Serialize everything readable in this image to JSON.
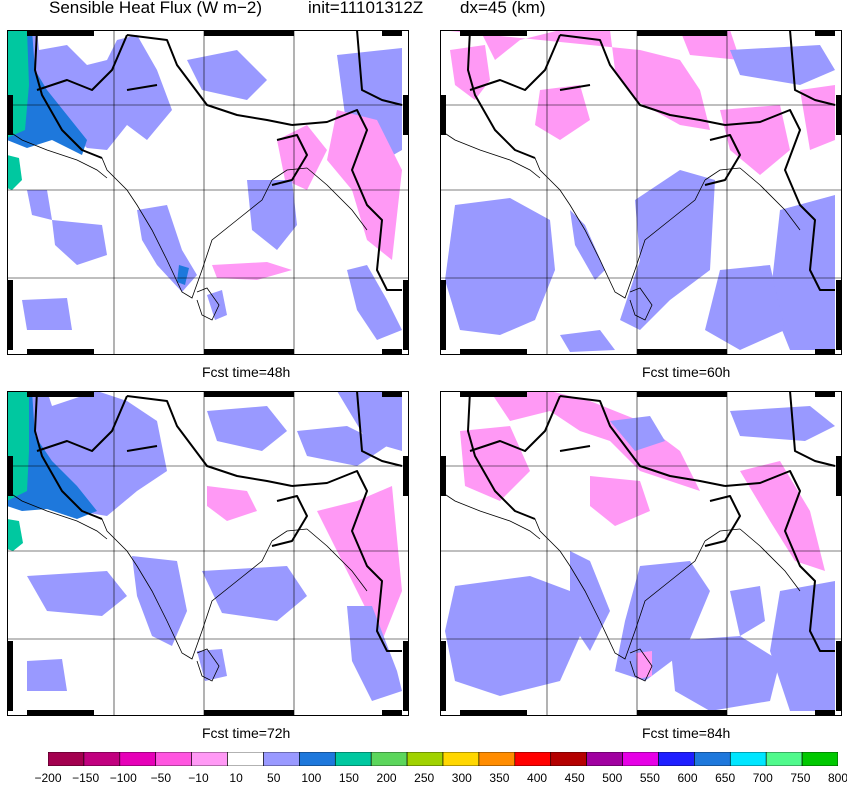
{
  "header": {
    "title": "Sensible Heat Flux (W m−2)",
    "init": "init=11101312Z",
    "dx": "dx=45 (km)"
  },
  "panels": [
    {
      "caption": "Fcst time=48h"
    },
    {
      "caption": "Fcst time=60h"
    },
    {
      "caption": "Fcst time=72h"
    },
    {
      "caption": "Fcst time=84h"
    }
  ],
  "colorbar": {
    "labels": [
      "−200",
      "−150",
      "−100",
      "−50",
      "−10",
      "10",
      "50",
      "100",
      "150",
      "200",
      "250",
      "300",
      "350",
      "400",
      "450",
      "500",
      "550",
      "600",
      "650",
      "700",
      "750",
      "800"
    ],
    "colors": [
      "#a3004f",
      "#c1007f",
      "#e600b8",
      "#ff55e0",
      "#ff99f5",
      "#ffffff",
      "#9999ff",
      "#1e78dc",
      "#00c8a0",
      "#5cd65c",
      "#a0d200",
      "#ffd700",
      "#ff8c00",
      "#ff0000",
      "#b40000",
      "#a000a0",
      "#e600e6",
      "#1e1eff",
      "#1e78dc",
      "#00e6ff",
      "#50fa8c",
      "#00c800"
    ]
  },
  "legend": {
    "positive_low": "#9999ff",
    "negative_low": "#ff99f5",
    "mid": "#1e78dc",
    "high": "#00c8a0"
  }
}
